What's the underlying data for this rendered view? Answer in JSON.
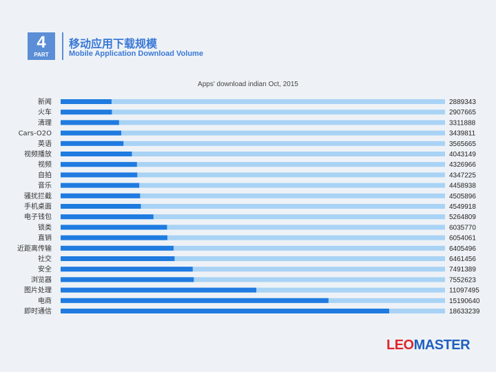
{
  "header": {
    "part_number": "4",
    "part_label": "PART",
    "title_cn": "移动应用下载规模",
    "title_en": "Mobile Application Download Volume"
  },
  "logo": {
    "part1": "LEO",
    "part2": "MASTER"
  },
  "colors": {
    "accent": "#3a78d6",
    "bar": "#1f7be0",
    "track": "#a9d3f5",
    "logo_red": "#e0262b",
    "logo_blue": "#1f5fbf"
  },
  "chart_data": {
    "type": "bar",
    "orientation": "horizontal",
    "title": "Apps' download indian Oct, 2015",
    "xlim": [
      0,
      21800000
    ],
    "categories": [
      "新闻",
      "火车",
      "清理",
      "Cars-O2O",
      "英语",
      "视频播放",
      "视频",
      "自拍",
      "音乐",
      "骚扰拦截",
      "手机桌面",
      "电子钱包",
      "锁类",
      "直销",
      "近距离传输",
      "社交",
      "安全",
      "浏览器",
      "图片处理",
      "电商",
      "即时通信"
    ],
    "values": [
      2889343,
      2907665,
      3311888,
      3439811,
      3565665,
      4043149,
      4326966,
      4347225,
      4458938,
      4505896,
      4549918,
      5264809,
      6035770,
      6054061,
      6405496,
      6461456,
      7491389,
      7552623,
      11097495,
      15190640,
      18633239
    ],
    "value_labels": [
      "2889343",
      "2907665",
      "3311888",
      "3439811",
      "3565665",
      "4043149",
      "4326966",
      "4347225",
      "4458938",
      "4505896",
      "4549918",
      "5264809",
      "6035770",
      "6054061",
      "6405496",
      "6461456",
      "7491389",
      "7552623",
      "11097495",
      "15190640",
      "18633239"
    ]
  }
}
